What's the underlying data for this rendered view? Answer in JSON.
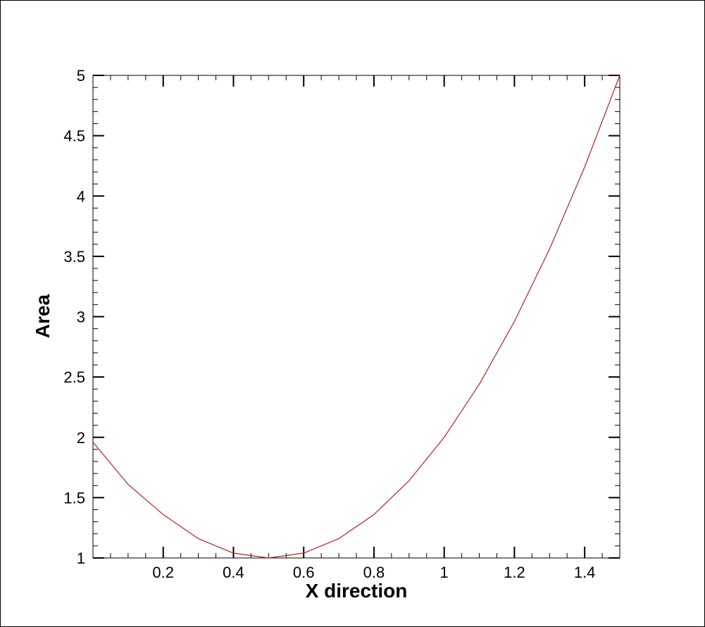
{
  "chart_data": {
    "type": "line",
    "title": "",
    "xlabel": "X direction",
    "ylabel": "Area",
    "xlim": [
      0,
      1.5
    ],
    "ylim": [
      1,
      5
    ],
    "x_ticks": [
      "0.2",
      "0.4",
      "0.6",
      "0.8",
      "1",
      "1.2",
      "1.4"
    ],
    "x_tick_values": [
      0.2,
      0.4,
      0.6,
      0.8,
      1.0,
      1.2,
      1.4
    ],
    "y_ticks": [
      "1",
      "1.5",
      "2",
      "2.5",
      "3",
      "3.5",
      "4",
      "4.5",
      "5"
    ],
    "y_tick_values": [
      1,
      1.5,
      2,
      2.5,
      3,
      3.5,
      4,
      4.5,
      5
    ],
    "grid": false,
    "legend": "none",
    "colors": {
      "line": "#b22222",
      "axis": "#000000",
      "frame": "#000000"
    },
    "series": [
      {
        "x": [
          0,
          0.1,
          0.2,
          0.3,
          0.4,
          0.5,
          0.6,
          0.7,
          0.8,
          0.9,
          1.0,
          1.1,
          1.2,
          1.3,
          1.4,
          1.5
        ],
        "y": [
          1.96,
          1.61,
          1.36,
          1.16,
          1.04,
          1.0,
          1.04,
          1.16,
          1.36,
          1.64,
          2.0,
          2.44,
          2.96,
          3.56,
          4.24,
          5.0
        ]
      }
    ]
  }
}
